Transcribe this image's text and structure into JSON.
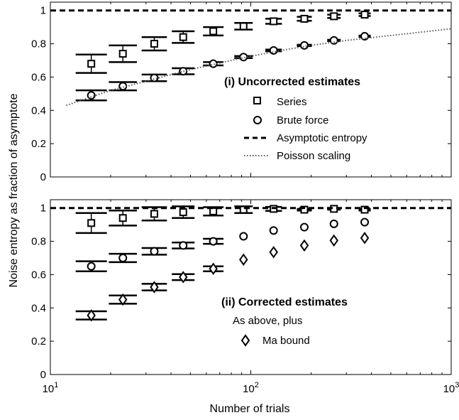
{
  "figure": {
    "ylabel": "Noise entropy as fraction of asymptote",
    "xlabel": "Number of trials"
  },
  "chart_data": [
    {
      "type": "scatter",
      "panel": "top",
      "x_scale": "log",
      "xlim": [
        10,
        1000
      ],
      "ylim": [
        0,
        1.05
      ],
      "yticks": [
        0,
        0.2,
        0.4,
        0.6,
        0.8,
        1
      ],
      "ytick_labels": [
        "0",
        "0.2",
        "0.4",
        "0.6",
        "0.8",
        "1"
      ],
      "grid": false,
      "legend": {
        "title": "(i) Uncorrected estimates",
        "placement": "center-right",
        "entries": [
          {
            "label": "Series",
            "marker": "square"
          },
          {
            "label": "Brute force",
            "marker": "circle"
          },
          {
            "label": "Asymptotic entropy",
            "style": "dashed-line"
          },
          {
            "label": "Poisson scaling",
            "style": "dotted-line"
          }
        ]
      },
      "series": [
        {
          "name": "Series",
          "marker": "square",
          "x": [
            16,
            23,
            33,
            46,
            65,
            92,
            130,
            185,
            260,
            370
          ],
          "y": [
            0.68,
            0.74,
            0.8,
            0.84,
            0.875,
            0.905,
            0.935,
            0.95,
            0.965,
            0.975
          ],
          "err": [
            0.055,
            0.05,
            0.04,
            0.035,
            0.025,
            0.02,
            0.015,
            0.012,
            0.01,
            0.008
          ]
        },
        {
          "name": "Brute force",
          "marker": "circle",
          "x": [
            16,
            23,
            33,
            46,
            65,
            92,
            130,
            185,
            260,
            370
          ],
          "y": [
            0.49,
            0.545,
            0.595,
            0.635,
            0.68,
            0.72,
            0.76,
            0.79,
            0.82,
            0.845
          ],
          "err": [
            0.03,
            0.025,
            0.02,
            0.018,
            0.01,
            0.006,
            0.005,
            0.004,
            0.004,
            0.004
          ]
        },
        {
          "name": "Asymptotic entropy",
          "style": "dashed",
          "x": [
            10,
            1000
          ],
          "y": [
            1,
            1
          ]
        },
        {
          "name": "Poisson scaling",
          "style": "dotted",
          "x": [
            12,
            20,
            30,
            50,
            80,
            100,
            150,
            200,
            300,
            500,
            1000
          ],
          "y": [
            0.43,
            0.52,
            0.575,
            0.645,
            0.7,
            0.725,
            0.765,
            0.79,
            0.82,
            0.85,
            0.89
          ]
        }
      ]
    },
    {
      "type": "scatter",
      "panel": "bottom",
      "x_scale": "log",
      "xlim": [
        10,
        1000
      ],
      "ylim": [
        0,
        1.05
      ],
      "xticks": [
        10,
        100,
        1000
      ],
      "xtick_bases": [
        "10",
        "10",
        "10"
      ],
      "xtick_exponents": [
        "1",
        "2",
        "3"
      ],
      "yticks": [
        0,
        0.2,
        0.4,
        0.6,
        0.8,
        1
      ],
      "ytick_labels": [
        "0",
        "0.2",
        "0.4",
        "0.6",
        "0.8",
        "1"
      ],
      "xlabel": "Number of trials",
      "grid": false,
      "legend": {
        "title": "(ii) Corrected estimates",
        "subtitle": "As above, plus",
        "placement": "bottom-right",
        "entries": [
          {
            "label": "Ma bound",
            "marker": "diamond"
          }
        ]
      },
      "series": [
        {
          "name": "Series",
          "marker": "square",
          "x": [
            16,
            23,
            33,
            46,
            65,
            92,
            130,
            185,
            260,
            370
          ],
          "y": [
            0.91,
            0.94,
            0.965,
            0.975,
            0.98,
            0.99,
            0.995,
            0.99,
            0.995,
            0.99
          ],
          "err": [
            0.06,
            0.045,
            0.04,
            0.035,
            0.025,
            0.02,
            0.012,
            0.005,
            0.005,
            0.005
          ]
        },
        {
          "name": "Brute force",
          "marker": "circle",
          "x": [
            16,
            23,
            33,
            46,
            65,
            92,
            130,
            185,
            260,
            370
          ],
          "y": [
            0.65,
            0.7,
            0.74,
            0.775,
            0.8,
            0.83,
            0.865,
            0.885,
            0.905,
            0.915
          ],
          "err": [
            0.03,
            0.025,
            0.02,
            0.018,
            0.015,
            0,
            0,
            0,
            0,
            0
          ]
        },
        {
          "name": "Ma bound",
          "marker": "diamond",
          "x": [
            16,
            23,
            33,
            46,
            65,
            92,
            130,
            185,
            260,
            370
          ],
          "y": [
            0.355,
            0.45,
            0.525,
            0.585,
            0.635,
            0.69,
            0.735,
            0.775,
            0.805,
            0.82
          ],
          "err": [
            0.025,
            0.025,
            0.02,
            0.018,
            0.015,
            0,
            0,
            0,
            0,
            0
          ]
        },
        {
          "name": "Asymptotic entropy",
          "style": "dashed",
          "x": [
            10,
            1000
          ],
          "y": [
            1,
            1
          ]
        }
      ]
    }
  ]
}
